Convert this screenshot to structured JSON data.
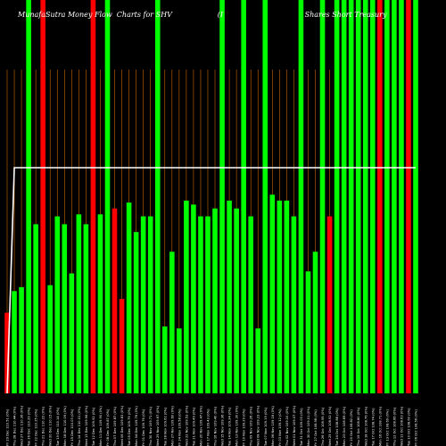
{
  "chart_data": {
    "type": "bar",
    "title": "MunafaSutra Money Flow  Charts for SHV                    (I                                    Shares Short Treasury",
    "ylim": [
      0,
      100
    ],
    "categories": [
      "Fri 29 Dec 110.51 (0%)",
      "Thu 28 Dec 110.44 (0%)",
      "Wed 27 Dec 110.36 (0%)",
      "Tue 26 Dec 110.29 (0%)",
      "Fri 22 Dec 110.25 (0%)",
      "Thu 21 Dec 110.22 (0%)",
      "Wed 20 Dec 110.15 (0%)",
      "Tue 19 Dec 110.14 (0%)",
      "Mon 18 Dec 110.09 (0%)",
      "Fri 15 Dec 110.03 (0%)",
      "Thu 14 Dec 110.01 (0%)",
      "Wed 13 Dec 109.96 (0%)",
      "Tue 12 Dec 109.92 (0%)",
      "Mon 11 Dec 109.90 (0%)",
      "Fri 08 Dec 109.87 (0%)",
      "Thu 07 Dec 109.87 (0%)",
      "Wed 06 Dec 109.83 (0%)",
      "Tue 05 Dec 109.79 (0%)",
      "Mon 04 Dec 109.76 (0%)",
      "Fri 01 Dec 109.76 (0%)",
      "Thu 30 Nov 109.71 (0%)",
      "Wed 29 Nov 109.67 (0%)",
      "Tue 28 Nov 109.62 (0%)",
      "Mon 27 Nov 109.60 (0%)",
      "Fri 24 Nov 109.58 (0%)",
      "Wed 22 Nov 109.53 (0%)",
      "Tue 21 Nov 109.49 (0%)",
      "Mon 20 Nov 109.47 (0%)",
      "Fri 17 Nov 109.43 (0%)",
      "Thu 16 Nov 109.40 (0%)",
      "Wed 15 Nov 109.36 (0%)",
      "Tue 14 Nov 109.34 (0%)",
      "Mon 13 Nov 109.30 (0%)",
      "Fri 10 Nov 109.29 (0%)",
      "Thu 09 Nov 109.26 (0%)",
      "Wed 08 Nov 109.23 (0%)",
      "Tue 07 Nov 109.19 (0%)",
      "Mon 06 Nov 109.16 (0%)",
      "Fri 03 Nov 109.12 (0%)",
      "Thu 02 Nov 109.10 (0%)",
      "Wed 01 Nov 109.07 (0%)",
      "Tue 31 Oct 109.03 (0%)",
      "Mon 30 Oct 109.01 (0%)",
      "Fri 27 Oct 108.98 (0%)",
      "Thu 26 Oct 108.95 (0%)",
      "Wed 25 Oct 108.92 (0%)",
      "Tue 24 Oct 108.88 (0%)",
      "Mon 23 Oct 108.85 (0%)",
      "Fri 20 Oct 108.82 (0%)",
      "Thu 19 Oct 108.80 (0%)",
      "Wed 18 Oct 108.76 (0%)",
      "Tue 17 Oct 108.74 (0%)",
      "Mon 16 Oct 108.71 (0%)",
      "Fri 13 Oct 108.69 (0%)",
      "Thu 12 Oct 108.66 (0%)",
      "Wed 11 Oct 108.63 (0%)",
      "Tue 10 Oct 108.60 (0%)",
      "Fri 06 Oct 108.56 (0%)"
    ],
    "series": [
      {
        "colors": [
          "red",
          "green",
          "green",
          "green",
          "green",
          "red",
          "green",
          "green",
          "green",
          "green",
          "green",
          "green",
          "red",
          "green",
          "green",
          "red",
          "red",
          "green",
          "green",
          "green",
          "green",
          "green",
          "green",
          "green",
          "green",
          "green",
          "green",
          "green",
          "green",
          "green",
          "green",
          "green",
          "green",
          "green",
          "green",
          "green",
          "green",
          "green",
          "green",
          "green",
          "green",
          "green",
          "green",
          "green",
          "green",
          "red",
          "green",
          "green",
          "green",
          "green",
          "green",
          "green",
          "red",
          "green",
          "green",
          "green",
          "red",
          "green"
        ],
        "values": [
          20.5,
          26,
          27,
          100,
          43,
          100,
          27.5,
          45,
          43,
          30.5,
          45.5,
          43,
          100,
          45.5,
          100,
          47,
          24,
          48.5,
          41,
          45,
          45,
          100,
          17,
          36,
          16.5,
          49,
          48,
          45,
          45,
          47,
          100,
          49,
          47,
          100,
          45,
          16.5,
          100,
          50.5,
          49,
          49,
          45,
          100,
          31,
          36,
          100,
          45,
          100,
          100,
          100,
          100,
          100,
          100,
          100,
          100,
          100,
          100,
          100,
          100
        ]
      }
    ],
    "line_values": [
      0,
      100,
      100,
      100,
      100,
      100,
      100,
      100,
      100,
      100,
      100,
      100,
      100,
      100,
      100,
      100,
      100,
      100,
      100,
      100,
      100,
      100,
      100,
      100,
      100,
      100,
      100,
      100,
      100,
      100,
      100,
      100,
      100,
      100,
      100,
      100,
      100,
      100,
      100,
      100,
      100,
      100,
      100,
      100,
      100,
      100,
      100,
      100,
      100,
      100,
      100,
      100,
      100,
      100,
      100,
      100,
      100,
      100
    ],
    "grid": true,
    "colors": {
      "background": "#000000",
      "green": "#00ff00",
      "red": "#ff0000",
      "grid": "#cc6600",
      "line": "#ffffff",
      "text": "#ffffff"
    }
  }
}
